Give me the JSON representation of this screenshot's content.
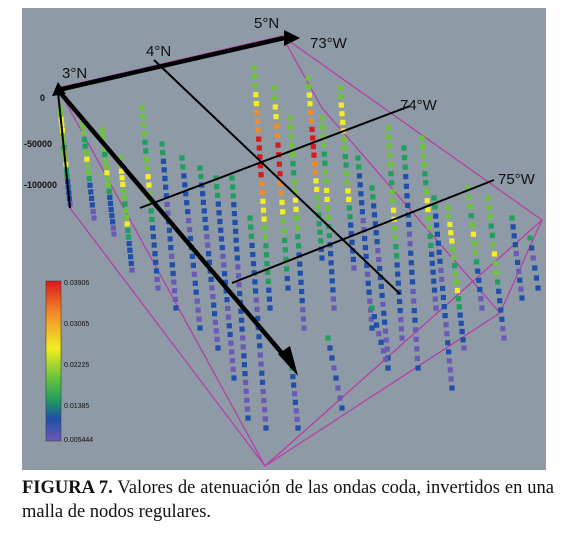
{
  "figure": {
    "lat_labels": [
      "3°N",
      "4°N",
      "5°N"
    ],
    "lon_labels": [
      "73°W",
      "74°W",
      "75°W"
    ],
    "depth_labels": [
      "0",
      "-50000",
      "-100000"
    ],
    "colorbar": {
      "ticks": [
        "0.03906",
        "0.03065",
        "0.02225",
        "0.01385",
        "0.005444"
      ],
      "colors": [
        "#d7191c",
        "#f1b82d",
        "#f2ee22",
        "#6dc43c",
        "#1f9f5e",
        "#1f4fa8",
        "#6a5ab5"
      ]
    },
    "colors": {
      "background": "#8e9aa6",
      "box": "#b83aa8",
      "grid_line": "#000000"
    }
  },
  "caption": {
    "label": "FIGURA 7.",
    "text": " Valores de atenuación de las ondas coda, invertidos en una malla de nodos regulares."
  }
}
